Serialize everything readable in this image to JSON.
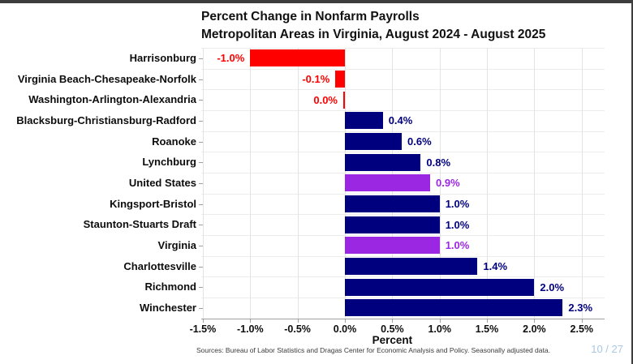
{
  "chart_data": {
    "type": "bar",
    "orientation": "horizontal",
    "title": "Percent Change in Nonfarm Payrolls",
    "subtitle": "Metropolitan Areas in Virginia, August 2024 - August 2025",
    "xlabel": "Percent",
    "categories": [
      "Harrisonburg",
      "Virginia Beach-Chesapeake-Norfolk",
      "Washington-Arlington-Alexandria",
      "Blacksburg-Christiansburg-Radford",
      "Roanoke",
      "Lynchburg",
      "United States",
      "Kingsport-Bristol",
      "Staunton-Stuarts Draft",
      "Virginia",
      "Charlottesville",
      "Richmond",
      "Winchester"
    ],
    "values": [
      -1.0,
      -0.1,
      0.0,
      0.4,
      0.6,
      0.8,
      0.9,
      1.0,
      1.0,
      1.0,
      1.4,
      2.0,
      2.3
    ],
    "value_labels": [
      "-1.0%",
      "-0.1%",
      "0.0%",
      "0.4%",
      "0.6%",
      "0.8%",
      "0.9%",
      "1.0%",
      "1.0%",
      "1.0%",
      "1.4%",
      "2.0%",
      "2.3%"
    ],
    "bar_color_keys": [
      "negative",
      "negative",
      "negative",
      "metro",
      "metro",
      "metro",
      "benchmark",
      "metro",
      "metro",
      "benchmark",
      "metro",
      "metro",
      "metro"
    ],
    "colors": {
      "negative": "#ff0000",
      "metro": "#00007f",
      "benchmark": "#9c27e2"
    },
    "x_tick_labels": [
      "-1.5%",
      "-1.0%",
      "-0.5%",
      "0.0%",
      "0.5%",
      "1.0%",
      "1.5%",
      "2.0%",
      "2.5%"
    ],
    "x_tick_values": [
      -1.5,
      -1.0,
      -0.5,
      0.0,
      0.5,
      1.0,
      1.5,
      2.0,
      2.5
    ],
    "xlim": [
      -1.5,
      2.5
    ],
    "grid": true,
    "legend": false
  },
  "footer": {
    "source": "Sources: Bureau of Labor Statistics and Dragas Center for Economic Analysis and Policy. Seasonally adjusted data.",
    "page": "10 / 27",
    "page_color": "#a9c7e7"
  },
  "window": {
    "edge_color": "#3d3d3d"
  }
}
